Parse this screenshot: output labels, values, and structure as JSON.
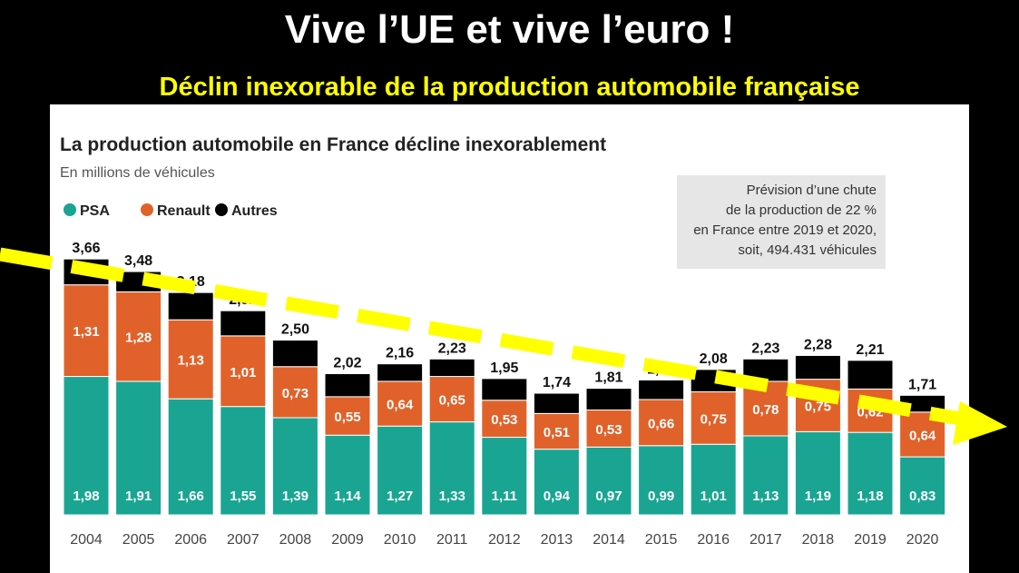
{
  "header": {
    "title": "Vive l’UE et vive l’euro !",
    "subtitle": "Déclin inexorable de la production automobile française"
  },
  "colors": {
    "PSA": "#1aa593",
    "Renault": "#e0622a",
    "Autres": "#000000",
    "arrow": "#ffff00"
  },
  "chart_data": {
    "type": "bar",
    "stacked": true,
    "title": "La production automobile en France décline inexorablement",
    "subtitle": "En millions de véhicules",
    "legend_placement": "top-left",
    "annotation": "Prévision d’une chute\nde la production de 22 %\nen France entre 2019 et 2020,\nsoit, 494.431 véhicules",
    "categories": [
      "2004",
      "2005",
      "2006",
      "2007",
      "2008",
      "2009",
      "2010",
      "2011",
      "2012",
      "2013",
      "2014",
      "2015",
      "2016",
      "2017",
      "2018",
      "2019",
      "2020"
    ],
    "totals": [
      "3,66",
      "3,48",
      "3,18",
      "2,92",
      "2,50",
      "2,02",
      "2,16",
      "2,23",
      "1,95",
      "1,74",
      "1,81",
      "1,93",
      "2,08",
      "2,23",
      "2,28",
      "2,21",
      "1,71"
    ],
    "series": [
      {
        "name": "PSA",
        "values": [
          1.98,
          1.91,
          1.66,
          1.55,
          1.39,
          1.14,
          1.27,
          1.33,
          1.11,
          0.94,
          0.97,
          0.99,
          1.01,
          1.13,
          1.19,
          1.18,
          0.83
        ]
      },
      {
        "name": "Renault",
        "values": [
          1.31,
          1.28,
          1.13,
          1.01,
          0.73,
          0.55,
          0.64,
          0.65,
          0.53,
          0.51,
          0.53,
          0.66,
          0.75,
          0.78,
          0.75,
          0.62,
          0.64
        ]
      },
      {
        "name": "Autres",
        "values": [
          0.37,
          0.29,
          0.39,
          0.36,
          0.38,
          0.33,
          0.25,
          0.25,
          0.31,
          0.29,
          0.31,
          0.28,
          0.32,
          0.32,
          0.34,
          0.41,
          0.24
        ]
      }
    ],
    "ylim": [
      0,
      3.8
    ],
    "grid": false
  }
}
